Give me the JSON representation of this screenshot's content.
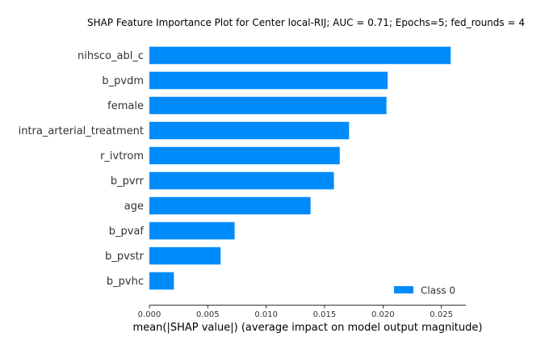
{
  "chart_data": {
    "type": "bar",
    "orientation": "horizontal",
    "title": "SHAP Feature Importance Plot for Center local-RIJ; AUC = 0.71; Epochs=5; fed_rounds = 4",
    "xlabel": "mean(|SHAP value|) (average impact on model output magnitude)",
    "ylabel": "",
    "categories": [
      "nihsco_abl_c",
      "b_pvdm",
      "female",
      "intra_arterial_treatment",
      "r_ivtrom",
      "b_pvrr",
      "age",
      "b_pvaf",
      "b_pvstr",
      "b_pvhc"
    ],
    "series": [
      {
        "name": "Class 0",
        "color": "#008bfb",
        "values": [
          0.0258,
          0.0204,
          0.0203,
          0.0171,
          0.0163,
          0.0158,
          0.0138,
          0.0073,
          0.0061,
          0.0021
        ]
      }
    ],
    "xlim": [
      0,
      0.0271
    ],
    "xticks": [
      0.0,
      0.005,
      0.01,
      0.015,
      0.02,
      0.025
    ],
    "xtick_labels": [
      "0.000",
      "0.005",
      "0.010",
      "0.015",
      "0.020",
      "0.025"
    ],
    "grid": false,
    "legend": {
      "position": "lower-right",
      "entries": [
        "Class 0"
      ]
    }
  }
}
